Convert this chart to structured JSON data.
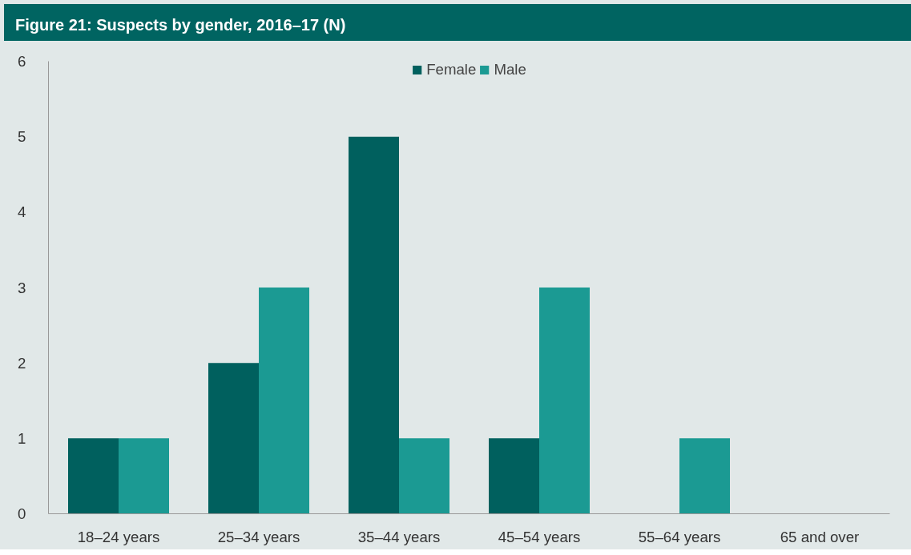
{
  "chart_data": {
    "type": "bar",
    "title": "Figure 21: Suspects by gender, 2016–17 (N)",
    "categories": [
      "18–24 years",
      "25–34 years",
      "35–44 years",
      "45–54 years",
      "55–64 years",
      "65 and over"
    ],
    "series": [
      {
        "name": "Female",
        "color": "#00605e",
        "values": [
          1,
          2,
          5,
          1,
          0,
          0
        ]
      },
      {
        "name": "Male",
        "color": "#1b9a93",
        "values": [
          1,
          3,
          1,
          3,
          1,
          0
        ]
      }
    ],
    "ylim": [
      0,
      6
    ],
    "yticks": [
      0,
      1,
      2,
      3,
      4,
      5,
      6
    ],
    "legend": "top"
  }
}
